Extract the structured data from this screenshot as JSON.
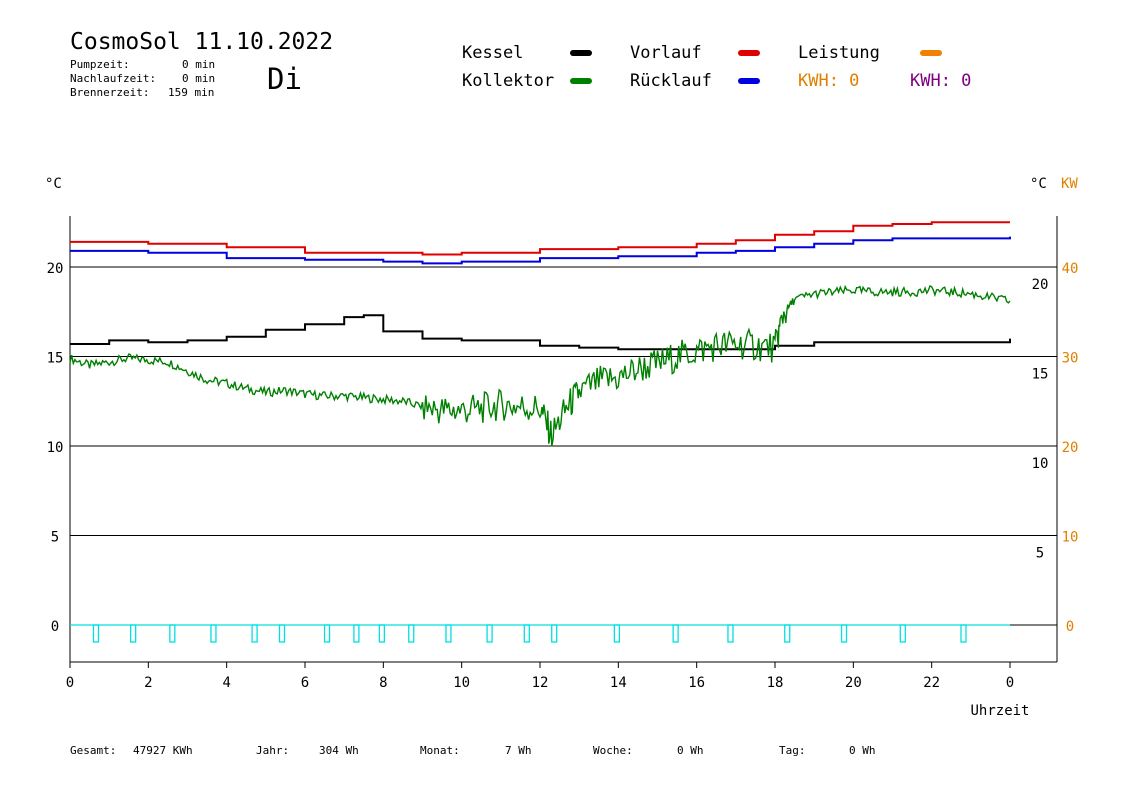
{
  "header": {
    "title": "CosmoSol 11.10.2022",
    "day": "Di",
    "pump_label": "Pumpzeit:",
    "pump_value": "0 min",
    "afterrun_label": "Nachlaufzeit:",
    "afterrun_value": "0 min",
    "burner_label": "Brennerzeit:",
    "burner_value": "159 min"
  },
  "legend": {
    "kessel": "Kessel",
    "kollektor": "Kollektor",
    "vorlauf": "Vorlauf",
    "ruecklauf": "Rücklauf",
    "leistung": "Leistung",
    "kwh_orange": "KWH: 0",
    "kwh_purple": "KWH: 0"
  },
  "axis_units": {
    "left": "°C",
    "right_c": "°C",
    "right_kw": "KW"
  },
  "footer": {
    "gesamt_label": "Gesamt:",
    "gesamt_value": "47927 KWh",
    "jahr_label": "Jahr:",
    "jahr_value": "304 Wh",
    "monat_label": "Monat:",
    "monat_value": "7 Wh",
    "woche_label": "Woche:",
    "woche_value": "0 Wh",
    "tag_label": "Tag:",
    "tag_value": "0 Wh"
  },
  "colors": {
    "kessel": "#000000",
    "kollektor": "#008000",
    "vorlauf": "#e00000",
    "ruecklauf": "#0000e0",
    "leistung": "#f08000",
    "pump": "#00e0e0",
    "kw_axis": "#e08000",
    "day": "#0000cc",
    "purple": "#800080"
  },
  "chart_data": {
    "type": "line",
    "xlabel": "Uhrzeit",
    "x_ticks": [
      "0",
      "2",
      "4",
      "6",
      "8",
      "10",
      "12",
      "14",
      "16",
      "18",
      "20",
      "22",
      "0"
    ],
    "y_left_ticks": [
      "20",
      "15",
      "10",
      "5",
      "0"
    ],
    "y_right_c_ticks": [
      "20",
      "15",
      "10",
      "5"
    ],
    "y_right_kw_ticks": [
      "40",
      "30",
      "20",
      "10",
      "0"
    ],
    "xlim": [
      0,
      24
    ],
    "ylim": [
      -2,
      24.5
    ],
    "grid": "horizontal",
    "series": [
      {
        "name": "Vorlauf",
        "color": "#e00000",
        "x": [
          0,
          2,
          4,
          6,
          8,
          9,
          10,
          12,
          14,
          16,
          17,
          18,
          19,
          20,
          21,
          22,
          24
        ],
        "y": [
          21.4,
          21.3,
          21.1,
          20.8,
          20.8,
          20.7,
          20.8,
          21.0,
          21.1,
          21.3,
          21.5,
          21.8,
          22.0,
          22.3,
          22.4,
          22.5,
          22.5
        ]
      },
      {
        "name": "Rücklauf",
        "color": "#0000e0",
        "x": [
          0,
          2,
          4,
          6,
          8,
          9,
          10,
          12,
          14,
          16,
          17,
          18,
          19,
          20,
          21,
          22,
          24
        ],
        "y": [
          20.9,
          20.8,
          20.5,
          20.4,
          20.3,
          20.2,
          20.3,
          20.5,
          20.6,
          20.8,
          20.9,
          21.1,
          21.3,
          21.5,
          21.6,
          21.6,
          21.7
        ]
      },
      {
        "name": "Kessel",
        "color": "#000000",
        "x": [
          0,
          1,
          2,
          3,
          4,
          5,
          6,
          7,
          7.5,
          8,
          9,
          10,
          12,
          13,
          14,
          16,
          18,
          19,
          20,
          22,
          24
        ],
        "y": [
          15.7,
          15.9,
          15.8,
          15.9,
          16.1,
          16.5,
          16.8,
          17.2,
          17.3,
          16.4,
          16.0,
          15.9,
          15.6,
          15.5,
          15.4,
          15.4,
          15.6,
          15.8,
          15.8,
          15.8,
          16.0
        ]
      },
      {
        "name": "Kollektor",
        "color": "#008000",
        "x": [
          0,
          0.5,
          1,
          1.5,
          2,
          2.5,
          3,
          3.5,
          4,
          4.5,
          5,
          5.5,
          6,
          6.5,
          7,
          7.5,
          8,
          8.5,
          9,
          9.5,
          10,
          10.5,
          11,
          11.5,
          12,
          12.3,
          12.7,
          13,
          13.5,
          14,
          14.5,
          15,
          15.5,
          16,
          16.5,
          17,
          17.5,
          18,
          18.2,
          18.5,
          19,
          19.5,
          20,
          20.5,
          21,
          21.5,
          22,
          22.5,
          23,
          23.5,
          24
        ],
        "y": [
          14.9,
          14.5,
          14.7,
          14.9,
          14.8,
          14.7,
          14.2,
          13.7,
          13.5,
          13.2,
          13.0,
          13.1,
          12.9,
          12.8,
          12.8,
          12.7,
          12.6,
          12.5,
          12.2,
          12.0,
          12.0,
          12.1,
          12.3,
          12.2,
          12.1,
          10.6,
          12.2,
          13.0,
          13.6,
          13.8,
          14.3,
          14.6,
          15.0,
          15.3,
          15.6,
          15.7,
          15.6,
          15.5,
          17.3,
          18.2,
          18.5,
          18.6,
          18.7,
          18.6,
          18.6,
          18.6,
          18.7,
          18.6,
          18.5,
          18.3,
          18.1
        ]
      }
    ],
    "pump_pulses_h": [
      0.65,
      1.6,
      2.6,
      3.65,
      4.7,
      5.4,
      6.55,
      7.3,
      7.95,
      8.7,
      9.65,
      10.7,
      11.65,
      12.35,
      13.95,
      15.45,
      16.85,
      18.3,
      19.75,
      21.25,
      22.8
    ],
    "leistung": [
      0
    ]
  }
}
